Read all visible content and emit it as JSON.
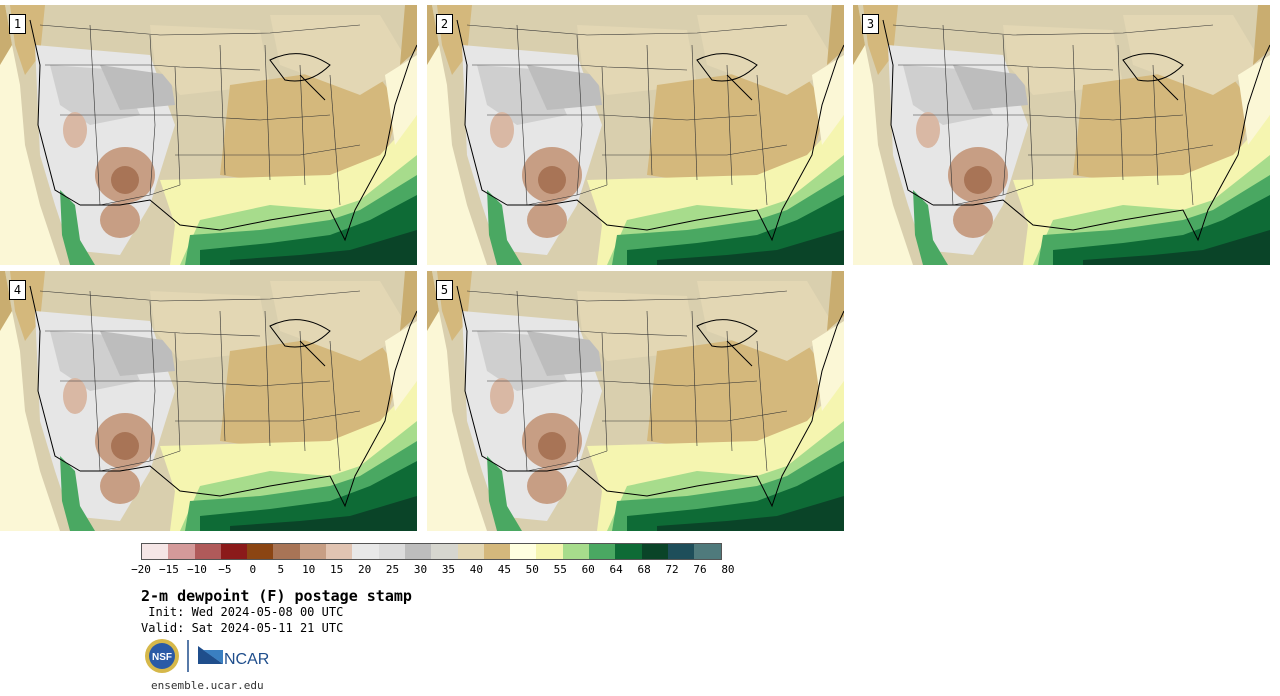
{
  "panels": [
    {
      "label": "1"
    },
    {
      "label": "2"
    },
    {
      "label": "3"
    },
    {
      "label": "4"
    },
    {
      "label": "5"
    }
  ],
  "colorbar": {
    "colors": [
      "#f5e6e6",
      "#d49a9a",
      "#b05a5a",
      "#8b1a1a",
      "#8b4513",
      "#a87456",
      "#c79e84",
      "#e1c4b2",
      "#e8e8e8",
      "#dcdcdc",
      "#bdbdbd",
      "#d6d6cf",
      "#e3d7b4",
      "#d4b87c",
      "#ffffe0",
      "#f5f5b0",
      "#a7dc8c",
      "#4aa862",
      "#0e6b36",
      "#0a4428",
      "#1e4e5a",
      "#4f7a7c"
    ],
    "tick_labels": [
      "−20",
      "−15",
      "−10",
      "−5",
      "0",
      "5",
      "10",
      "15",
      "20",
      "25",
      "30",
      "35",
      "40",
      "45",
      "50",
      "55",
      "60",
      "64",
      "68",
      "72",
      "76",
      "80"
    ]
  },
  "title": "2-m dewpoint (F) postage stamp",
  "init": " Init: Wed 2024-05-08 00 UTC",
  "valid": "Valid: Sat 2024-05-11 21 UTC",
  "logos": {
    "nsf": "NSF",
    "ncar": "NCAR"
  },
  "footer_url": "ensemble.ucar.edu"
}
